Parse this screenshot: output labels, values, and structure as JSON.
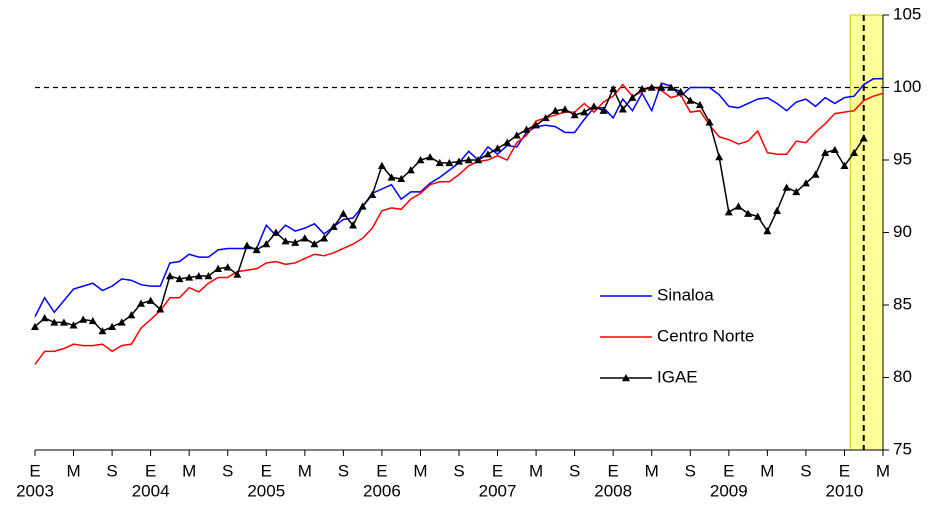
{
  "chart_data": {
    "type": "line",
    "categories": [
      "E",
      null,
      null,
      null,
      "M",
      null,
      null,
      null,
      "S",
      null,
      null,
      null,
      "E",
      null,
      null,
      null,
      "M",
      null,
      null,
      null,
      "S",
      null,
      null,
      null,
      "E",
      null,
      null,
      null,
      "M",
      null,
      null,
      null,
      "S",
      null,
      null,
      null,
      "E",
      null,
      null,
      null,
      "M",
      null,
      null,
      null,
      "S",
      null,
      null,
      null,
      "E",
      null,
      null,
      null,
      "M",
      null,
      null,
      null,
      "S",
      null,
      null,
      null,
      "E",
      null,
      null,
      null,
      "M",
      null,
      null,
      null,
      "S",
      null,
      null,
      null,
      "E",
      null,
      null,
      null,
      "M",
      null,
      null,
      null,
      "S",
      null,
      null,
      null,
      "E",
      null,
      null,
      null,
      "M"
    ],
    "years": [
      "2003",
      null,
      null,
      null,
      null,
      null,
      null,
      null,
      null,
      null,
      null,
      null,
      "2004",
      null,
      null,
      null,
      null,
      null,
      null,
      null,
      null,
      null,
      null,
      null,
      "2005",
      null,
      null,
      null,
      null,
      null,
      null,
      null,
      null,
      null,
      null,
      null,
      "2006",
      null,
      null,
      null,
      null,
      null,
      null,
      null,
      null,
      null,
      null,
      null,
      "2007",
      null,
      null,
      null,
      null,
      null,
      null,
      null,
      null,
      null,
      null,
      null,
      "2008",
      null,
      null,
      null,
      null,
      null,
      null,
      null,
      null,
      null,
      null,
      null,
      "2009",
      null,
      null,
      null,
      null,
      null,
      null,
      null,
      null,
      null,
      null,
      null,
      "2010",
      null,
      null,
      null,
      null
    ],
    "series": [
      {
        "name": "Sinaloa",
        "color": "#0000ff",
        "marker": "none",
        "values": [
          84.2,
          85.5,
          84.5,
          85.3,
          86.1,
          86.3,
          86.5,
          86.0,
          86.3,
          86.8,
          86.7,
          86.4,
          86.3,
          86.3,
          87.9,
          88.0,
          88.5,
          88.3,
          88.3,
          88.8,
          88.9,
          88.9,
          88.9,
          88.9,
          90.5,
          89.8,
          90.5,
          90.1,
          90.3,
          90.6,
          89.9,
          90.4,
          90.9,
          91.0,
          91.8,
          92.7,
          93.0,
          93.3,
          92.3,
          92.8,
          92.8,
          93.4,
          93.8,
          94.3,
          94.8,
          95.6,
          95.0,
          95.9,
          95.4,
          96.0,
          95.9,
          96.9,
          97.3,
          97.4,
          97.3,
          96.9,
          96.9,
          97.8,
          98.6,
          98.6,
          97.9,
          99.2,
          98.4,
          99.6,
          98.4,
          100.3,
          100.1,
          99.4,
          100.0,
          100.0,
          100.0,
          99.5,
          98.7,
          98.6,
          98.9,
          99.2,
          99.3,
          98.9,
          98.4,
          99.0,
          99.2,
          98.7,
          99.3,
          98.9,
          99.3,
          99.4,
          100.2,
          100.6,
          100.6
        ]
      },
      {
        "name": "Centro Norte",
        "color": "#ff0000",
        "marker": "none",
        "values": [
          80.9,
          81.8,
          81.8,
          82.0,
          82.3,
          82.2,
          82.2,
          82.3,
          81.8,
          82.2,
          82.3,
          83.4,
          84.0,
          84.6,
          85.5,
          85.5,
          86.2,
          85.9,
          86.5,
          86.9,
          86.9,
          87.3,
          87.4,
          87.5,
          87.9,
          88.0,
          87.8,
          87.9,
          88.2,
          88.5,
          88.4,
          88.6,
          88.9,
          89.2,
          89.6,
          90.3,
          91.5,
          91.7,
          91.6,
          92.3,
          92.7,
          93.3,
          93.5,
          93.5,
          94.0,
          94.6,
          94.9,
          95.0,
          95.3,
          95.0,
          96.2,
          96.7,
          97.7,
          97.9,
          98.1,
          98.3,
          98.3,
          98.9,
          98.3,
          99.0,
          99.4,
          100.2,
          99.4,
          99.7,
          100.1,
          99.8,
          99.3,
          99.5,
          98.3,
          98.4,
          97.4,
          96.6,
          96.4,
          96.1,
          96.3,
          97.0,
          95.5,
          95.4,
          95.4,
          96.3,
          96.2,
          96.9,
          97.5,
          98.2,
          98.3,
          98.4,
          99.1,
          99.4,
          99.6
        ]
      },
      {
        "name": "IGAE",
        "color": "#000000",
        "marker": "triangle",
        "values": [
          83.5,
          84.1,
          83.8,
          83.8,
          83.6,
          84.0,
          83.9,
          83.2,
          83.5,
          83.8,
          84.3,
          85.1,
          85.3,
          84.7,
          87.0,
          86.8,
          86.9,
          87.0,
          87.0,
          87.5,
          87.6,
          87.1,
          89.1,
          88.8,
          89.2,
          90.0,
          89.4,
          89.3,
          89.6,
          89.2,
          89.6,
          90.4,
          91.3,
          90.5,
          91.8,
          92.6,
          94.6,
          93.8,
          93.7,
          94.3,
          95.0,
          95.2,
          94.8,
          94.8,
          94.9,
          95.0,
          95.0,
          95.4,
          95.8,
          96.2,
          96.7,
          97.1,
          97.4,
          97.9,
          98.4,
          98.5,
          98.1,
          98.3,
          98.7,
          98.4,
          99.9,
          98.5,
          99.3,
          99.9,
          100.0,
          100.0,
          100.0,
          99.7,
          99.1,
          98.8,
          97.6,
          95.2,
          91.4,
          91.8,
          91.3,
          91.1,
          90.1,
          91.5,
          93.1,
          92.8,
          93.4,
          94.0,
          95.5,
          95.7,
          94.6,
          95.5,
          96.5,
          null,
          null
        ]
      }
    ],
    "ylim": [
      75,
      105
    ],
    "yticks": [
      75,
      80,
      85,
      90,
      95,
      100,
      105
    ],
    "y_axis_side": "right",
    "reference_y": 100,
    "reference_x_index": 86,
    "shaded_x_index": [
      84.6,
      88
    ],
    "shade_color": "#ffff99",
    "legend": "center-right"
  }
}
